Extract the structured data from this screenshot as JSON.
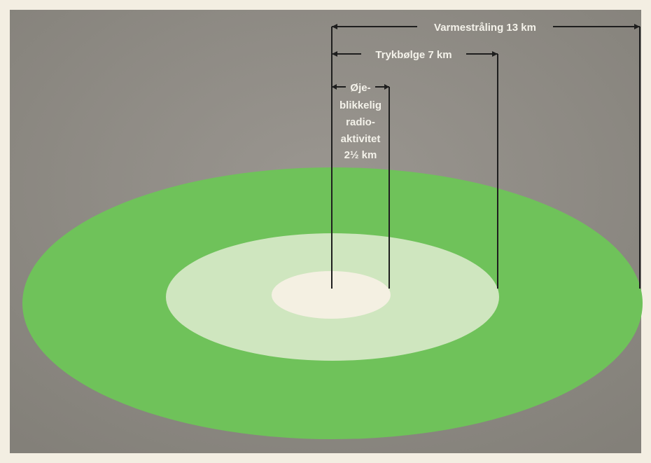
{
  "colors": {
    "background_gray": "#8f8b86",
    "outer_zone": "#6fc25a",
    "middle_zone": "#cfe6bf",
    "inner_zone": "#f4f0e2",
    "line": "#1e1e1e",
    "label_text": "#f4f2ea"
  },
  "labels": {
    "heat_radiation": "Varmestråling 13 km",
    "blast_wave": "Trykbølge 7 km",
    "radioactivity_lines": [
      "Øje-",
      "blikkelig",
      "radio-",
      "aktivitet",
      "2½ km"
    ]
  }
}
